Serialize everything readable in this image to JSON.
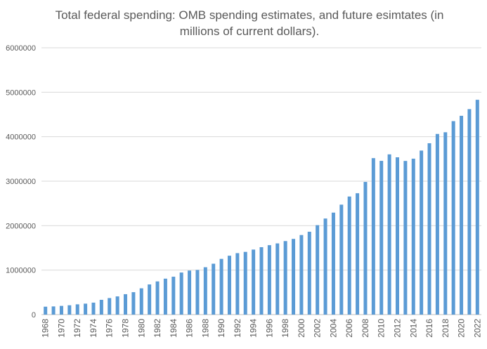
{
  "chart_data": {
    "type": "bar",
    "title": "Total federal spending: OMB spending estimates, and future esimtates (in\nmillions of current dollars).",
    "xlabel": "",
    "ylabel": "",
    "ylim": [
      0,
      6000000
    ],
    "yticks": [
      0,
      1000000,
      2000000,
      3000000,
      4000000,
      5000000,
      6000000
    ],
    "ytick_labels": [
      "0",
      "1000000",
      "2000000",
      "3000000",
      "4000000",
      "5000000",
      "6000000"
    ],
    "grid": true,
    "legend": "none",
    "bar_color": "#5b9bd5",
    "categories": [
      "1968",
      "1969",
      "1970",
      "1971",
      "1972",
      "1973",
      "1974",
      "1975",
      "1976",
      "1977",
      "1978",
      "1979",
      "1980",
      "1981",
      "1982",
      "1983",
      "1984",
      "1985",
      "1986",
      "1987",
      "1988",
      "1989",
      "1990",
      "1991",
      "1992",
      "1993",
      "1994",
      "1995",
      "1996",
      "1997",
      "1998",
      "1999",
      "2000",
      "2001",
      "2002",
      "2003",
      "2004",
      "2005",
      "2006",
      "2007",
      "2008",
      "2009",
      "2010",
      "2011",
      "2012",
      "2013",
      "2014",
      "2015",
      "2016",
      "2017",
      "2018",
      "2019",
      "2020",
      "2021",
      "2022"
    ],
    "values": [
      178000,
      184000,
      196000,
      210000,
      231000,
      246000,
      269000,
      332000,
      372000,
      409000,
      459000,
      504000,
      591000,
      678000,
      746000,
      808000,
      852000,
      946000,
      990000,
      1004000,
      1065000,
      1144000,
      1253000,
      1324000,
      1382000,
      1410000,
      1462000,
      1516000,
      1561000,
      1601000,
      1653000,
      1702000,
      1789000,
      1863000,
      2011000,
      2160000,
      2293000,
      2472000,
      2655000,
      2729000,
      2983000,
      3518000,
      3457000,
      3603000,
      3537000,
      3455000,
      3506000,
      3688000,
      3853000,
      4062000,
      4100000,
      4350000,
      4470000,
      4620000,
      4830000
    ]
  }
}
